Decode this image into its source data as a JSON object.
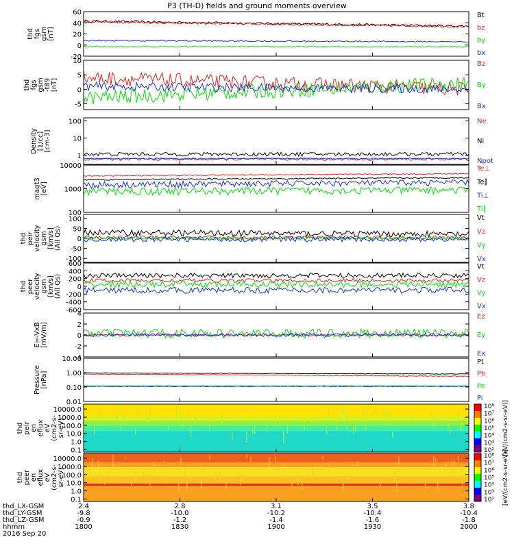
{
  "title": "P3 (TH-D) fields and ground moments overview",
  "colors": {
    "black": "#000000",
    "red": "#e8201b",
    "green": "#00e000",
    "blue": "#1030e0"
  },
  "chart_data": [
    {
      "type": "line",
      "ylabel_lines": [
        "thd",
        "fgs",
        "gsm",
        "[nT]"
      ],
      "ylim": [
        -20,
        60
      ],
      "yticks": [
        "60",
        "40",
        "20",
        "0",
        "-20"
      ],
      "ytick_values": [
        60,
        40,
        20,
        0,
        -20
      ],
      "series": [
        {
          "name": "Bt",
          "color": "#000000",
          "level": 43,
          "noise": 2,
          "drift": -9
        },
        {
          "name": "bz",
          "color": "#e8201b",
          "level": 42,
          "noise": 2,
          "drift": -9
        },
        {
          "name": "by",
          "color": "#00e000",
          "level": -3,
          "noise": 1,
          "drift": 0
        },
        {
          "name": "bx",
          "color": "#1030e0",
          "level": 8,
          "noise": 1,
          "drift": -2
        }
      ]
    },
    {
      "type": "line",
      "ylabel_lines": [
        "thd",
        "fgs",
        "gsm",
        "-t89",
        "[nT]"
      ],
      "ylim": [
        -7,
        10
      ],
      "yticks": [
        "10",
        "5",
        "0",
        "-5"
      ],
      "ytick_values": [
        10,
        5,
        0,
        -5
      ],
      "series": [
        {
          "name": "Bz",
          "color": "#e8201b",
          "level": 4,
          "noise": 2.5,
          "drift": -4
        },
        {
          "name": "By",
          "color": "#00e000",
          "level": -3,
          "noise": 2.5,
          "drift": 5
        },
        {
          "name": "Bx",
          "color": "#1030e0",
          "level": 1,
          "noise": 1.5,
          "drift": -1
        }
      ]
    },
    {
      "type": "line",
      "log": true,
      "ylabel_lines": [
        "Density",
        "[1/cc]",
        "[cm-3]"
      ],
      "ylim": [
        0.3,
        150
      ],
      "yticks": [
        "100",
        "10",
        "1"
      ],
      "ytick_values": [
        100,
        10,
        1
      ],
      "series": [
        {
          "name": "Ne",
          "color": "#e8201b",
          "level": 0.6,
          "noise": 0.1,
          "drift": 0
        },
        {
          "name": "Ni",
          "color": "#000000",
          "level": 1.2,
          "noise": 0.3,
          "drift": 0
        },
        {
          "name": "Npot",
          "color": "#1030e0",
          "level": 0.65,
          "noise": 0.05,
          "drift": 0
        }
      ]
    },
    {
      "type": "line",
      "log": true,
      "ylabel_lines": [
        "magt3",
        "[eV]"
      ],
      "ylim": [
        100,
        10000
      ],
      "yticks": [
        "10000",
        "1000",
        "100"
      ],
      "ytick_values": [
        10000,
        1000,
        100
      ],
      "series": [
        {
          "name": "Te⊥",
          "color": "#e8201b",
          "level": 3500,
          "noise": 200,
          "drift": 800
        },
        {
          "name": "Te∥",
          "color": "#000000",
          "level": 2400,
          "noise": 150,
          "drift": 500
        },
        {
          "name": "Ti⊥",
          "color": "#1030e0",
          "level": 1500,
          "noise": 500,
          "drift": 400
        },
        {
          "name": "Ti∥",
          "color": "#00e000",
          "level": 800,
          "noise": 300,
          "drift": 100
        }
      ]
    },
    {
      "type": "line",
      "ylabel_lines": [
        "thd",
        "peir",
        "velocity",
        "gsm",
        "[km/s]",
        "(All Qs)"
      ],
      "ylim": [
        -120,
        120
      ],
      "yticks": [
        "100",
        "50",
        "0",
        "-50",
        "-100"
      ],
      "ytick_values": [
        100,
        50,
        0,
        -50,
        -100
      ],
      "series": [
        {
          "name": "Vt",
          "color": "#000000",
          "level": 30,
          "noise": 15,
          "drift": -10
        },
        {
          "name": "Vz",
          "color": "#e8201b",
          "level": 5,
          "noise": 8,
          "drift": 0
        },
        {
          "name": "Vy",
          "color": "#00e000",
          "level": 0,
          "noise": 8,
          "drift": 0
        },
        {
          "name": "Vx",
          "color": "#1030e0",
          "level": -5,
          "noise": 12,
          "drift": 0
        }
      ]
    },
    {
      "type": "line",
      "ylabel_lines": [
        "thd",
        "peer",
        "velocity",
        "gsm",
        "[km/s]",
        "(All Qs)"
      ],
      "ylim": [
        -600,
        600
      ],
      "yticks": [
        "600",
        "400",
        "200",
        "0",
        "-200",
        "-400",
        "-600"
      ],
      "ytick_values": [
        600,
        400,
        200,
        0,
        -200,
        -400,
        -600
      ],
      "series": [
        {
          "name": "Vt",
          "color": "#000000",
          "level": 280,
          "noise": 60,
          "drift": 0
        },
        {
          "name": "Vz",
          "color": "#e8201b",
          "level": 150,
          "noise": 50,
          "drift": 0
        },
        {
          "name": "Vy",
          "color": "#00e000",
          "level": 50,
          "noise": 80,
          "drift": 0
        },
        {
          "name": "Vx",
          "color": "#1030e0",
          "level": -100,
          "noise": 80,
          "drift": 0
        }
      ]
    },
    {
      "type": "line",
      "ylabel_lines": [
        "E=-VxB",
        "[mV/m]"
      ],
      "ylim": [
        -4,
        4
      ],
      "yticks": [
        "4",
        "2",
        "0",
        "-2",
        "-4"
      ],
      "ytick_values": [
        4,
        2,
        0,
        -2,
        -4
      ],
      "series": [
        {
          "name": "Ez",
          "color": "#e8201b",
          "level": 0,
          "noise": 0.2,
          "drift": 0
        },
        {
          "name": "Ey",
          "color": "#00e000",
          "level": 0.3,
          "noise": 0.8,
          "drift": 0
        },
        {
          "name": "Ex",
          "color": "#1030e0",
          "level": 0,
          "noise": 0.3,
          "drift": 0
        }
      ]
    },
    {
      "type": "line",
      "log": true,
      "ylabel_lines": [
        "Pressure",
        "[nPa]"
      ],
      "ylim": [
        0.01,
        10
      ],
      "yticks": [
        "10.00",
        "1.00",
        "0.10",
        "0.01"
      ],
      "ytick_values": [
        10,
        1,
        0.1,
        0.01
      ],
      "series": [
        {
          "name": "Pt",
          "color": "#000000",
          "level": 0.95,
          "noise": 0.03,
          "drift": -0.15
        },
        {
          "name": "Pb",
          "color": "#e8201b",
          "level": 0.8,
          "noise": 0.03,
          "drift": -0.25
        },
        {
          "name": "Pe",
          "color": "#00e000",
          "level": 0.12,
          "noise": 0.005,
          "drift": 0
        },
        {
          "name": "Pi",
          "color": "#1030e0",
          "level": 0.11,
          "noise": 0.005,
          "drift": 0
        }
      ]
    },
    {
      "type": "heatmap",
      "log": true,
      "ylabel_lines": [
        "thd",
        "peir",
        "en",
        "eflux",
        "eV",
        "(cm2-s-",
        "sr-eV)"
      ],
      "ylim": [
        0.05,
        40000
      ],
      "yticks": [
        "10000.0",
        "1000.0",
        "100.0",
        "10.0",
        "1.0",
        "0.1"
      ],
      "ytick_values": [
        10000,
        1000,
        100,
        10,
        1,
        0.1
      ],
      "colorbar_ticks": [
        "10⁸",
        "10⁷",
        "10⁶",
        "10⁵",
        "10⁴",
        "10³",
        "10²"
      ],
      "colorbar_label": "[eV/(cm2-s-sr-eV)]"
    },
    {
      "type": "heatmap",
      "log": true,
      "ylabel_lines": [
        "thd",
        "peer",
        "en",
        "eflux",
        "eV",
        "(cm2-s-",
        "sr-eV)"
      ],
      "ylim": [
        0.05,
        40000
      ],
      "yticks": [
        "10000.0",
        "1000.0",
        "100.0",
        "10.0",
        "1.0",
        "0.1"
      ],
      "ytick_values": [
        10000,
        1000,
        100,
        10,
        1,
        0.1
      ],
      "colorbar_ticks": [
        "10⁸",
        "10⁷",
        "10⁶",
        "10⁵",
        "10⁴",
        "10³",
        "10²"
      ],
      "colorbar_label": "[eV/(cm2-s-sr-eV)]"
    }
  ],
  "xaxis": {
    "rows": [
      {
        "label": "thd_LX-GSM",
        "values": [
          "2.4",
          "2.8",
          "3.1",
          "3.5",
          "3.8"
        ]
      },
      {
        "label": "thd_LY-GSM",
        "values": [
          "-9.8",
          "-10.0",
          "-10.2",
          "-10.4",
          "-10.4"
        ]
      },
      {
        "label": "thd_LZ-GSM",
        "values": [
          "-0.9",
          "-1.2",
          "-1.4",
          "-1.6",
          "-1.8"
        ]
      },
      {
        "label": "hhmm",
        "values": [
          "1800",
          "1830",
          "1900",
          "1930",
          "2000"
        ]
      }
    ],
    "date": "2016 Sep 20"
  }
}
